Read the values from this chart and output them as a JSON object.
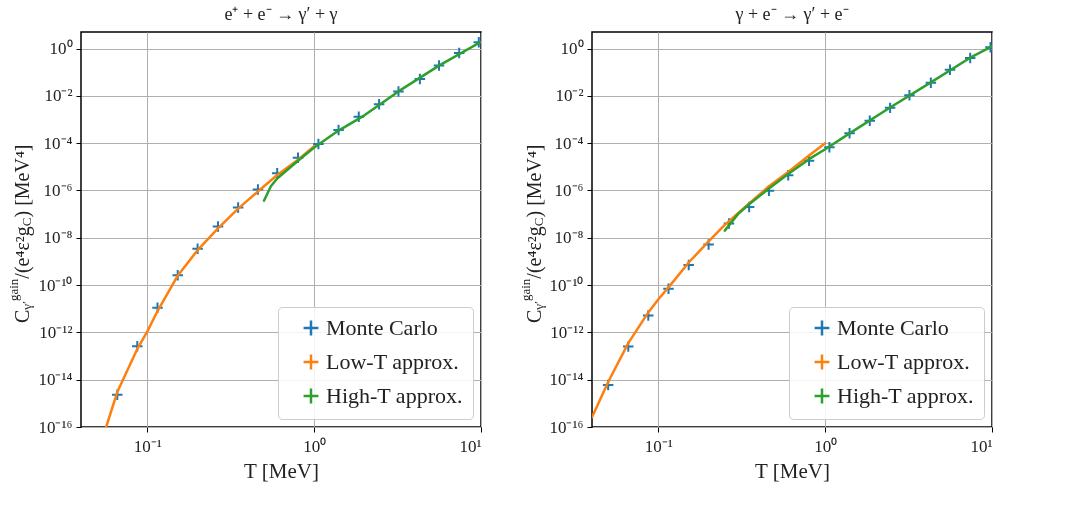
{
  "chart_data": [
    {
      "type": "line",
      "title": "e⁺ + e⁻ → γ′ + γ",
      "xlabel": "T [MeV]",
      "ylabel": "C$_{γ′}$$^{gain}$/(e⁴ε²g$_{C}$) [MeV⁴]",
      "log": "xy",
      "xlim": [
        0.04,
        10
      ],
      "ylim": [
        1e-16,
        5
      ],
      "xticks": [
        {
          "value": 0.1,
          "label": "10⁻¹"
        },
        {
          "value": 1,
          "label": "10⁰"
        },
        {
          "value": 10,
          "label": "10¹"
        }
      ],
      "yticks": [
        {
          "value": 1e-16,
          "label": "10⁻¹⁶"
        },
        {
          "value": 1e-14,
          "label": "10⁻¹⁴"
        },
        {
          "value": 1e-12,
          "label": "10⁻¹²"
        },
        {
          "value": 1e-10,
          "label": "10⁻¹⁰"
        },
        {
          "value": 1e-08,
          "label": "10⁻⁸"
        },
        {
          "value": 1e-06,
          "label": "10⁻⁶"
        },
        {
          "value": 0.0001,
          "label": "10⁻⁴"
        },
        {
          "value": 0.01,
          "label": "10⁻²"
        },
        {
          "value": 1,
          "label": "10⁰"
        }
      ],
      "grid": true,
      "legend": "bottom right",
      "series": [
        {
          "name": "Monte Carlo",
          "type": "scatter",
          "marker": "cross",
          "color": "#1f77b4",
          "x": [
            0.066,
            0.087,
            0.115,
            0.152,
            0.2,
            0.265,
            0.35,
            0.46,
            0.6,
            0.8,
            1.06,
            1.4,
            1.85,
            2.45,
            3.2,
            4.3,
            5.6,
            7.4,
            9.7
          ],
          "values": [
            2.3e-15,
            2.6e-13,
            1.1e-11,
            2.6e-10,
            3.4e-09,
            3e-08,
            1.9e-07,
            1.1e-06,
            5.3e-06,
            2.4e-05,
            9.3e-05,
            0.00036,
            0.0013,
            0.0044,
            0.0154,
            0.052,
            0.19,
            0.64,
            1.85
          ]
        },
        {
          "name": "Low-T approx.",
          "type": "line",
          "color": "#ff7f0e",
          "x": [
            0.0566,
            0.066,
            0.087,
            0.1,
            0.115,
            0.152,
            0.2,
            0.265,
            0.35,
            0.46,
            0.6,
            0.8,
            1.0
          ],
          "values": [
            1e-16,
            3e-15,
            2e-13,
            1.1e-12,
            8e-12,
            2.5e-10,
            3e-09,
            2.5e-08,
            1.7e-07,
            9e-07,
            4.5e-06,
            2e-05,
            7.5e-05
          ]
        },
        {
          "name": "High-T approx.",
          "type": "line",
          "color": "#2ca02c",
          "x": [
            0.5,
            0.55,
            0.6,
            0.8,
            1.0,
            1.4,
            2,
            3.2,
            5.6,
            10
          ],
          "values": [
            3.7e-07,
            1.5e-06,
            3.2e-06,
            1.8e-05,
            6.5e-05,
            0.00034,
            0.0015,
            0.0154,
            0.19,
            1.9
          ]
        }
      ]
    },
    {
      "type": "line",
      "title": "γ + e⁻ → γ′ + e⁻",
      "xlabel": "T [MeV]",
      "ylabel": "C$_{γ′}$$^{gain}$/(e⁴ε²g$_{C}$) [MeV⁴]",
      "log": "xy",
      "xlim": [
        0.04,
        10
      ],
      "ylim": [
        1e-16,
        5
      ],
      "xticks": [
        {
          "value": 0.1,
          "label": "10⁻¹"
        },
        {
          "value": 1,
          "label": "10⁰"
        },
        {
          "value": 10,
          "label": "10¹"
        }
      ],
      "yticks": [
        {
          "value": 1e-16,
          "label": "10⁻¹⁶"
        },
        {
          "value": 1e-14,
          "label": "10⁻¹⁴"
        },
        {
          "value": 1e-12,
          "label": "10⁻¹²"
        },
        {
          "value": 1e-10,
          "label": "10⁻¹⁰"
        },
        {
          "value": 1e-08,
          "label": "10⁻⁸"
        },
        {
          "value": 1e-06,
          "label": "10⁻⁶"
        },
        {
          "value": 0.0001,
          "label": "10⁻⁴"
        },
        {
          "value": 0.01,
          "label": "10⁻²"
        },
        {
          "value": 1,
          "label": "10⁰"
        }
      ],
      "grid": true,
      "legend": "bottom right",
      "series": [
        {
          "name": "Monte Carlo",
          "type": "scatter",
          "marker": "cross",
          "color": "#1f77b4",
          "x": [
            0.05,
            0.066,
            0.087,
            0.115,
            0.152,
            0.2,
            0.265,
            0.35,
            0.46,
            0.6,
            0.8,
            1.06,
            1.4,
            1.85,
            2.45,
            3.2,
            4.3,
            5.6,
            7.4,
            9.8
          ],
          "values": [
            6e-15,
            2.5e-13,
            5.2e-12,
            7e-11,
            7e-10,
            5.2e-09,
            4e-08,
            2e-07,
            9.8e-07,
            4.4e-06,
            1.8e-05,
            6.7e-05,
            0.00026,
            0.00089,
            0.0031,
            0.0106,
            0.036,
            0.128,
            0.4,
            1.14
          ]
        },
        {
          "name": "Low-T approx.",
          "type": "line",
          "color": "#ff7f0e",
          "x": [
            0.04,
            0.05,
            0.066,
            0.087,
            0.1,
            0.115,
            0.152,
            0.2,
            0.25,
            0.35,
            0.46,
            0.6,
            0.8,
            1.0
          ],
          "values": [
            2.6e-16,
            8e-15,
            3.5e-13,
            7e-12,
            2.5e-11,
            8e-11,
            9e-10,
            7e-09,
            3.5e-08,
            2.8e-07,
            1.5e-06,
            6e-06,
            3e-05,
            0.0001
          ]
        },
        {
          "name": "High-T approx.",
          "type": "line",
          "color": "#2ca02c",
          "x": [
            0.25,
            0.3,
            0.35,
            0.46,
            0.6,
            0.8,
            1.0,
            1.4,
            2.45,
            4.3,
            7.4,
            10
          ],
          "values": [
            2e-08,
            1e-07,
            2.6e-07,
            1.2e-06,
            5e-06,
            2.1e-05,
            5.5e-05,
            0.00026,
            0.0032,
            0.037,
            0.41,
            1.25
          ]
        }
      ]
    }
  ]
}
